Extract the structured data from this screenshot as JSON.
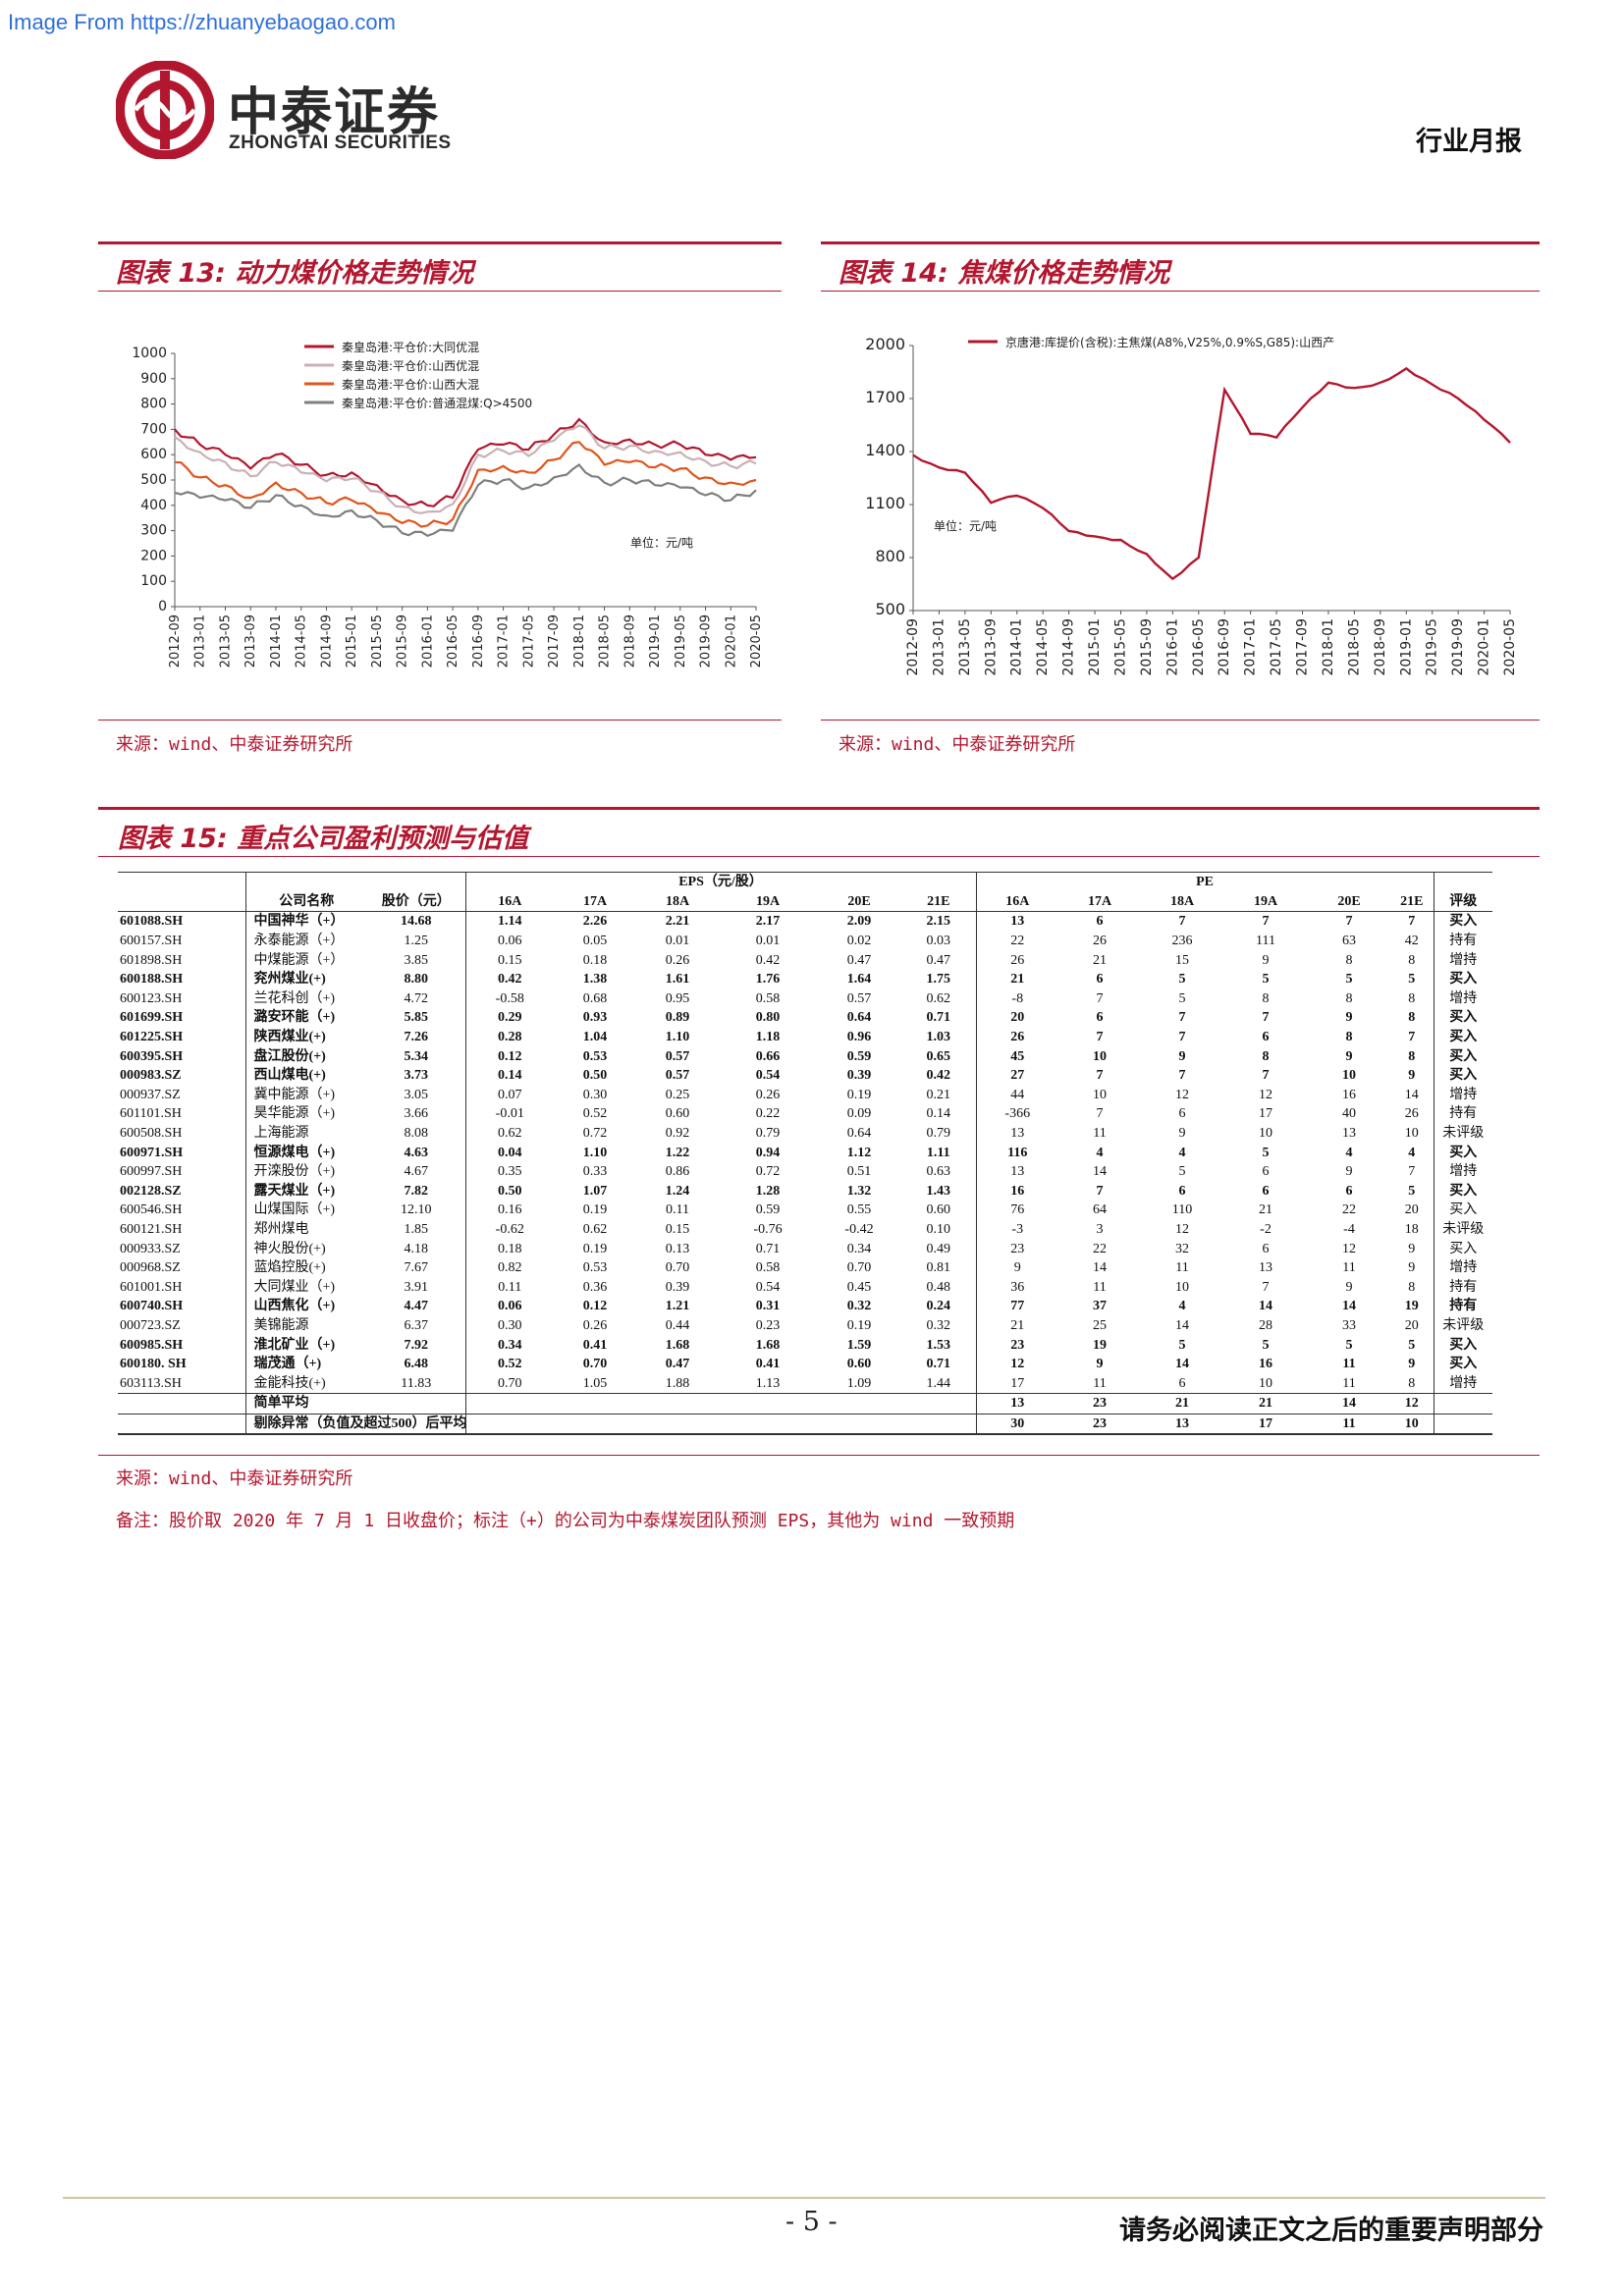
{
  "watermark": "Image From https://zhuanyebaogao.com",
  "header": {
    "logo_name": "中泰证券",
    "logo_sub": "ZHONGTAI SECURITIES",
    "report_type": "行业月报"
  },
  "figure13": {
    "title": "图表 13: 动力煤价格走势情况",
    "source": "来源：wind、中泰证券研究所",
    "unit_note": "单位：元/吨"
  },
  "figure14": {
    "title": "图表 14: 焦煤价格走势情况",
    "source": "来源：wind、中泰证券研究所",
    "unit_note": "单位：元/吨"
  },
  "chart_data": [
    {
      "type": "line",
      "title": "",
      "xlabel": "",
      "ylabel": "",
      "ylim": [
        0,
        1000
      ],
      "yticks": [
        0,
        100,
        200,
        300,
        400,
        500,
        600,
        700,
        800,
        900,
        1000
      ],
      "categories": [
        "2012-09",
        "2013-01",
        "2013-05",
        "2013-09",
        "2014-01",
        "2014-05",
        "2014-09",
        "2015-01",
        "2015-05",
        "2015-09",
        "2016-01",
        "2016-05",
        "2016-09",
        "2017-01",
        "2017-05",
        "2017-09",
        "2018-01",
        "2018-05",
        "2018-09",
        "2019-01",
        "2019-05",
        "2019-09",
        "2020-01",
        "2020-05"
      ],
      "legend_position": "top-left",
      "grid": false,
      "series": [
        {
          "name": "秦皇岛港:平仓价:大同优混",
          "color": "#b3172f",
          "values": [
            700,
            640,
            600,
            545,
            600,
            560,
            520,
            530,
            480,
            420,
            400,
            430,
            620,
            640,
            620,
            680,
            740,
            650,
            660,
            640,
            640,
            600,
            580,
            590
          ]
        },
        {
          "name": "秦皇岛港:平仓价:山西优混",
          "color": "#c9b0b6",
          "values": [
            670,
            610,
            570,
            515,
            570,
            530,
            495,
            505,
            455,
            395,
            375,
            405,
            600,
            615,
            595,
            655,
            715,
            625,
            635,
            615,
            610,
            575,
            555,
            565
          ]
        },
        {
          "name": "秦皇岛港:平仓价:山西大混",
          "color": "#e0551b",
          "values": [
            570,
            510,
            480,
            430,
            490,
            450,
            410,
            420,
            370,
            330,
            320,
            345,
            540,
            555,
            530,
            580,
            650,
            560,
            570,
            550,
            545,
            510,
            490,
            500
          ]
        },
        {
          "name": "秦皇岛港:平仓价:普通混煤:Q>4500",
          "color": "#7f7f7f",
          "values": [
            450,
            430,
            420,
            390,
            440,
            400,
            360,
            380,
            340,
            290,
            280,
            300,
            480,
            500,
            470,
            510,
            560,
            490,
            500,
            480,
            470,
            440,
            420,
            460
          ]
        }
      ]
    },
    {
      "type": "line",
      "title": "",
      "xlabel": "",
      "ylabel": "",
      "ylim": [
        500,
        2000
      ],
      "yticks": [
        500,
        800,
        1100,
        1400,
        1700,
        2000
      ],
      "categories": [
        "2012-09",
        "2013-01",
        "2013-05",
        "2013-09",
        "2014-01",
        "2014-05",
        "2014-09",
        "2015-01",
        "2015-05",
        "2015-09",
        "2016-01",
        "2016-05",
        "2016-09",
        "2017-01",
        "2017-05",
        "2017-09",
        "2018-01",
        "2018-05",
        "2018-09",
        "2019-01",
        "2019-05",
        "2019-09",
        "2020-01",
        "2020-05"
      ],
      "legend_position": "top",
      "grid": false,
      "series": [
        {
          "name": "京唐港:库提价(含税):主焦煤(A8%,V25%,0.9%S,G85):山西产",
          "color": "#b3172f",
          "values": [
            1380,
            1310,
            1280,
            1110,
            1150,
            1080,
            950,
            920,
            900,
            820,
            680,
            800,
            1750,
            1500,
            1480,
            1650,
            1790,
            1760,
            1790,
            1870,
            1780,
            1700,
            1580,
            1450
          ]
        }
      ]
    }
  ],
  "figure15": {
    "title": "图表 15: 重点公司盈利预测与估值",
    "source": "来源：wind、中泰证券研究所",
    "note": "备注：股价取 2020 年 7 月 1 日收盘价；标注（+）的公司为中泰煤炭团队预测 EPS，其他为 wind 一致预期",
    "group_eps": "EPS（元/股）",
    "group_pe": "PE",
    "col_name": "公司名称",
    "col_price": "股价（元）",
    "col_rating": "评级",
    "eps_years": [
      "16A",
      "17A",
      "18A",
      "19A",
      "20E",
      "21E"
    ],
    "pe_years": [
      "16A",
      "17A",
      "18A",
      "19A",
      "20E",
      "21E"
    ],
    "rows": [
      {
        "code": "601088.SH",
        "name": "中国神华（+）",
        "price": "14.68",
        "eps": [
          "1.14",
          "2.26",
          "2.21",
          "2.17",
          "2.09",
          "2.15"
        ],
        "pe": [
          "13",
          "6",
          "7",
          "7",
          "7",
          "7"
        ],
        "rating": "买入",
        "bold": true
      },
      {
        "code": "600157.SH",
        "name": "永泰能源（+）",
        "price": "1.25",
        "eps": [
          "0.06",
          "0.05",
          "0.01",
          "0.01",
          "0.02",
          "0.03"
        ],
        "pe": [
          "22",
          "26",
          "236",
          "111",
          "63",
          "42"
        ],
        "rating": "持有",
        "bold": false
      },
      {
        "code": "601898.SH",
        "name": "中煤能源（+）",
        "price": "3.85",
        "eps": [
          "0.15",
          "0.18",
          "0.26",
          "0.42",
          "0.47",
          "0.47"
        ],
        "pe": [
          "26",
          "21",
          "15",
          "9",
          "8",
          "8"
        ],
        "rating": "增持",
        "bold": false
      },
      {
        "code": "600188.SH",
        "name": "兖州煤业(+)",
        "price": "8.80",
        "eps": [
          "0.42",
          "1.38",
          "1.61",
          "1.76",
          "1.64",
          "1.75"
        ],
        "pe": [
          "21",
          "6",
          "5",
          "5",
          "5",
          "5"
        ],
        "rating": "买入",
        "bold": true
      },
      {
        "code": "600123.SH",
        "name": "兰花科创（+)",
        "price": "4.72",
        "eps": [
          "-0.58",
          "0.68",
          "0.95",
          "0.58",
          "0.57",
          "0.62"
        ],
        "pe": [
          "-8",
          "7",
          "5",
          "8",
          "8",
          "8"
        ],
        "rating": "增持",
        "bold": false
      },
      {
        "code": "601699.SH",
        "name": "潞安环能（+)",
        "price": "5.85",
        "eps": [
          "0.29",
          "0.93",
          "0.89",
          "0.80",
          "0.64",
          "0.71"
        ],
        "pe": [
          "20",
          "6",
          "7",
          "7",
          "9",
          "8"
        ],
        "rating": "买入",
        "bold": true
      },
      {
        "code": "601225.SH",
        "name": "陕西煤业(+)",
        "price": "7.26",
        "eps": [
          "0.28",
          "1.04",
          "1.10",
          "1.18",
          "0.96",
          "1.03"
        ],
        "pe": [
          "26",
          "7",
          "7",
          "6",
          "8",
          "7"
        ],
        "rating": "买入",
        "bold": true
      },
      {
        "code": "600395.SH",
        "name": "盘江股份(+)",
        "price": "5.34",
        "eps": [
          "0.12",
          "0.53",
          "0.57",
          "0.66",
          "0.59",
          "0.65"
        ],
        "pe": [
          "45",
          "10",
          "9",
          "8",
          "9",
          "8"
        ],
        "rating": "买入",
        "bold": true
      },
      {
        "code": "000983.SZ",
        "name": "西山煤电(+)",
        "price": "3.73",
        "eps": [
          "0.14",
          "0.50",
          "0.57",
          "0.54",
          "0.39",
          "0.42"
        ],
        "pe": [
          "27",
          "7",
          "7",
          "7",
          "10",
          "9"
        ],
        "rating": "买入",
        "bold": true
      },
      {
        "code": "000937.SZ",
        "name": "冀中能源（+)",
        "price": "3.05",
        "eps": [
          "0.07",
          "0.30",
          "0.25",
          "0.26",
          "0.19",
          "0.21"
        ],
        "pe": [
          "44",
          "10",
          "12",
          "12",
          "16",
          "14"
        ],
        "rating": "增持",
        "bold": false
      },
      {
        "code": "601101.SH",
        "name": "昊华能源（+)",
        "price": "3.66",
        "eps": [
          "-0.01",
          "0.52",
          "0.60",
          "0.22",
          "0.09",
          "0.14"
        ],
        "pe": [
          "-366",
          "7",
          "6",
          "17",
          "40",
          "26"
        ],
        "rating": "持有",
        "bold": false
      },
      {
        "code": "600508.SH",
        "name": "上海能源",
        "price": "8.08",
        "eps": [
          "0.62",
          "0.72",
          "0.92",
          "0.79",
          "0.64",
          "0.79"
        ],
        "pe": [
          "13",
          "11",
          "9",
          "10",
          "13",
          "10"
        ],
        "rating": "未评级",
        "bold": false
      },
      {
        "code": "600971.SH",
        "name": "恒源煤电（+)",
        "price": "4.63",
        "eps": [
          "0.04",
          "1.10",
          "1.22",
          "0.94",
          "1.12",
          "1.11"
        ],
        "pe": [
          "116",
          "4",
          "4",
          "5",
          "4",
          "4"
        ],
        "rating": "买入",
        "bold": true
      },
      {
        "code": "600997.SH",
        "name": "开滦股份（+)",
        "price": "4.67",
        "eps": [
          "0.35",
          "0.33",
          "0.86",
          "0.72",
          "0.51",
          "0.63"
        ],
        "pe": [
          "13",
          "14",
          "5",
          "6",
          "9",
          "7"
        ],
        "rating": "增持",
        "bold": false
      },
      {
        "code": "002128.SZ",
        "name": "露天煤业（+)",
        "price": "7.82",
        "eps": [
          "0.50",
          "1.07",
          "1.24",
          "1.28",
          "1.32",
          "1.43"
        ],
        "pe": [
          "16",
          "7",
          "6",
          "6",
          "6",
          "5"
        ],
        "rating": "买入",
        "bold": true
      },
      {
        "code": "600546.SH",
        "name": "山煤国际（+)",
        "price": "12.10",
        "eps": [
          "0.16",
          "0.19",
          "0.11",
          "0.59",
          "0.55",
          "0.60"
        ],
        "pe": [
          "76",
          "64",
          "110",
          "21",
          "22",
          "20"
        ],
        "rating": "买入",
        "bold": false
      },
      {
        "code": "600121.SH",
        "name": "郑州煤电",
        "price": "1.85",
        "eps": [
          "-0.62",
          "0.62",
          "0.15",
          "-0.76",
          "-0.42",
          "0.10"
        ],
        "pe": [
          "-3",
          "3",
          "12",
          "-2",
          "-4",
          "18"
        ],
        "rating": "未评级",
        "bold": false
      },
      {
        "code": "000933.SZ",
        "name": "神火股份(+)",
        "price": "4.18",
        "eps": [
          "0.18",
          "0.19",
          "0.13",
          "0.71",
          "0.34",
          "0.49"
        ],
        "pe": [
          "23",
          "22",
          "32",
          "6",
          "12",
          "9"
        ],
        "rating": "买入",
        "bold": false
      },
      {
        "code": "000968.SZ",
        "name": "蓝焰控股(+)",
        "price": "7.67",
        "eps": [
          "0.82",
          "0.53",
          "0.70",
          "0.58",
          "0.70",
          "0.81"
        ],
        "pe": [
          "9",
          "14",
          "11",
          "13",
          "11",
          "9"
        ],
        "rating": "增持",
        "bold": false
      },
      {
        "code": "601001.SH",
        "name": "大同煤业（+)",
        "price": "3.91",
        "eps": [
          "0.11",
          "0.36",
          "0.39",
          "0.54",
          "0.45",
          "0.48"
        ],
        "pe": [
          "36",
          "11",
          "10",
          "7",
          "9",
          "8"
        ],
        "rating": "持有",
        "bold": false
      },
      {
        "code": "600740.SH",
        "name": "山西焦化（+)",
        "price": "4.47",
        "eps": [
          "0.06",
          "0.12",
          "1.21",
          "0.31",
          "0.32",
          "0.24"
        ],
        "pe": [
          "77",
          "37",
          "4",
          "14",
          "14",
          "19"
        ],
        "rating": "持有",
        "bold": true
      },
      {
        "code": "000723.SZ",
        "name": "美锦能源",
        "price": "6.37",
        "eps": [
          "0.30",
          "0.26",
          "0.44",
          "0.23",
          "0.19",
          "0.32"
        ],
        "pe": [
          "21",
          "25",
          "14",
          "28",
          "33",
          "20"
        ],
        "rating": "未评级",
        "bold": false
      },
      {
        "code": "600985.SH",
        "name": "淮北矿业（+)",
        "price": "7.92",
        "eps": [
          "0.34",
          "0.41",
          "1.68",
          "1.68",
          "1.59",
          "1.53"
        ],
        "pe": [
          "23",
          "19",
          "5",
          "5",
          "5",
          "5"
        ],
        "rating": "买入",
        "bold": true
      },
      {
        "code": "600180. SH",
        "name": "瑞茂通（+)",
        "price": "6.48",
        "eps": [
          "0.52",
          "0.70",
          "0.47",
          "0.41",
          "0.60",
          "0.71"
        ],
        "pe": [
          "12",
          "9",
          "14",
          "16",
          "11",
          "9"
        ],
        "rating": "买入",
        "bold": true
      },
      {
        "code": "603113.SH",
        "name": "金能科技(+)",
        "price": "11.83",
        "eps": [
          "0.70",
          "1.05",
          "1.88",
          "1.13",
          "1.09",
          "1.44"
        ],
        "pe": [
          "17",
          "11",
          "6",
          "10",
          "11",
          "8"
        ],
        "rating": "增持",
        "bold": false
      }
    ],
    "avg_label": "简单平均",
    "avg_pe": [
      "13",
      "23",
      "21",
      "21",
      "14",
      "12"
    ],
    "trim_label": "剔除异常（负值及超过500）后平均",
    "trim_pe": [
      "30",
      "23",
      "13",
      "17",
      "11",
      "10"
    ]
  },
  "footer": {
    "page": "- 5 -",
    "disclaimer": "请务必阅读正文之后的重要声明部分"
  }
}
